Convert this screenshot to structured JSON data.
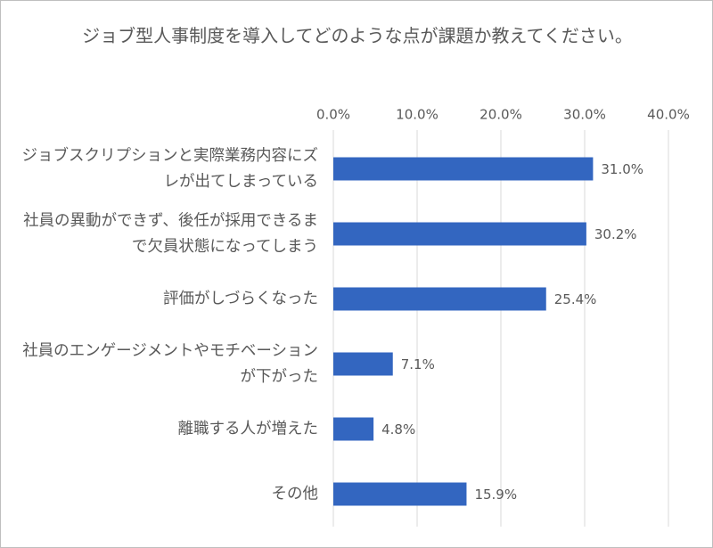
{
  "chart_data": {
    "type": "barh",
    "title": "ジョブ型人事制度を導入してどのような点が課題か教えてください。",
    "categories": [
      "ジョブスクリプションと実際業務内容にズレが出てしまっている",
      "社員の異動ができず、後任が採用できるまで欠員状態になってしまう",
      "評価がしづらくなった",
      "社員のエンゲージメントやモチベーションが下がった",
      "離職する人が増えた",
      "その他"
    ],
    "values": [
      31.0,
      30.2,
      25.4,
      7.1,
      4.8,
      15.9
    ],
    "value_labels": [
      "31.0%",
      "30.2%",
      "25.4%",
      "7.1%",
      "4.8%",
      "15.9%"
    ],
    "color": "#3366c0",
    "xlim": [
      0,
      40
    ],
    "xticks": [
      {
        "value": 0,
        "label": "0.0%"
      },
      {
        "value": 10,
        "label": "10.0%"
      },
      {
        "value": 20,
        "label": "20.0%"
      },
      {
        "value": 30,
        "label": "30.0%"
      },
      {
        "value": 40,
        "label": "40.0%"
      }
    ],
    "grid": true
  }
}
